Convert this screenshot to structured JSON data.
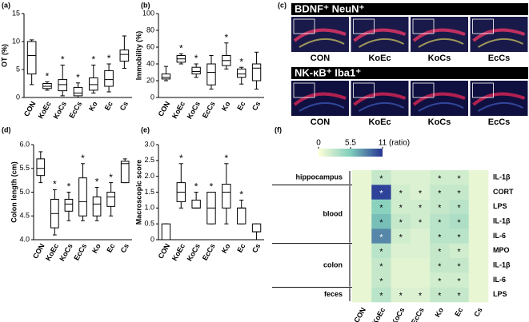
{
  "chart_data": [
    {
      "type": "box",
      "panel": "(a)",
      "ylabel": "OT (%)",
      "categories": [
        "CON",
        "KoEc",
        "KoCs",
        "EcCs",
        "Ko",
        "Ec",
        "Cs"
      ],
      "boxes": [
        [
          2.3,
          4.2,
          7.5,
          10,
          10.3
        ],
        [
          1.3,
          1.6,
          2,
          2.5,
          2.8
        ],
        [
          0.3,
          1.2,
          2.3,
          3.2,
          5.8
        ],
        [
          0,
          0.3,
          0.8,
          1.8,
          2.6
        ],
        [
          0.8,
          1.3,
          2.3,
          3.5,
          5.8
        ],
        [
          1,
          2,
          3.2,
          4.8,
          6
        ],
        [
          5.2,
          6.5,
          7.7,
          8.5,
          11
        ]
      ],
      "marks": [
        null,
        "*",
        "*",
        "*",
        "*",
        "*",
        null
      ],
      "ylim": [
        0,
        15
      ],
      "yticks": [
        0,
        5,
        10,
        15
      ]
    },
    {
      "type": "box",
      "panel": "(b)",
      "ylabel": "Immobility (%)",
      "categories": [
        "CON",
        "KoEc",
        "KoCs",
        "EcCs",
        "Ko",
        "Ec",
        "Cs"
      ],
      "boxes": [
        [
          20,
          22,
          24,
          28,
          37
        ],
        [
          40,
          42,
          46,
          50,
          52
        ],
        [
          24,
          28,
          31,
          36,
          40
        ],
        [
          10,
          15,
          30,
          40,
          50
        ],
        [
          34,
          38,
          44,
          50,
          65
        ],
        [
          16,
          24,
          28,
          34,
          36
        ],
        [
          10,
          20,
          35,
          40,
          54
        ]
      ],
      "marks": [
        null,
        "*",
        "*",
        null,
        "*",
        "*",
        null
      ],
      "ylim": [
        0,
        100
      ],
      "yticks": [
        0,
        20,
        40,
        60,
        80,
        100
      ]
    },
    {
      "type": "box",
      "panel": "(d)",
      "ylabel": "Colon length (cm)",
      "categories": [
        "CON",
        "KoEc",
        "KoCs",
        "EcCs",
        "Ko",
        "Ec",
        "Cs"
      ],
      "boxes": [
        [
          5.2,
          5.35,
          5.5,
          5.7,
          5.85
        ],
        [
          4.1,
          4.25,
          4.55,
          4.85,
          5.05
        ],
        [
          4.4,
          4.6,
          4.75,
          4.85,
          5.0
        ],
        [
          4.4,
          4.5,
          4.8,
          5.3,
          5.6
        ],
        [
          4.4,
          4.5,
          4.75,
          4.9,
          5.1
        ],
        [
          4.5,
          4.7,
          4.9,
          5.0,
          5.2
        ],
        [
          5.2,
          5.2,
          5.6,
          5.65,
          5.7
        ]
      ],
      "marks": [
        null,
        "*",
        "*",
        "*",
        "*",
        "*",
        null
      ],
      "ylim": [
        4,
        6
      ],
      "yticks": [
        {
          "value": 4,
          "label": "4.0"
        },
        4.5,
        {
          "value": 5,
          "label": "5.0"
        },
        5.5,
        {
          "value": 6,
          "label": "6.0"
        }
      ]
    },
    {
      "type": "box",
      "panel": "(e)",
      "ylabel": "Macroscopic score",
      "categories": [
        "CON",
        "KoEc",
        "KoCs",
        "EcCs",
        "Ko",
        "Ec",
        "Cs"
      ],
      "boxes": [
        [
          0,
          0,
          0,
          0.5,
          0.5
        ],
        [
          1,
          1.2,
          1.5,
          1.8,
          2.4
        ],
        [
          1,
          1,
          1,
          1.25,
          1.5
        ],
        [
          0.5,
          0.5,
          1,
          1.5,
          1.5
        ],
        [
          0.5,
          1,
          1.5,
          1.75,
          2.4
        ],
        [
          0.5,
          0.5,
          1,
          1,
          1.25
        ],
        [
          0,
          0.25,
          0.25,
          0.5,
          0.5
        ]
      ],
      "marks": [
        null,
        "*",
        "*",
        "*",
        "*",
        "*",
        null
      ],
      "ylim": [
        0,
        3
      ],
      "yticks": [
        0,
        0.5,
        {
          "value": 1,
          "label": "1.0"
        },
        1.5,
        {
          "value": 2,
          "label": "2.0"
        },
        2.5,
        {
          "value": 3,
          "label": "3.0"
        }
      ]
    },
    {
      "type": "heatmap",
      "panel": "(f)",
      "colorbar_label": "(ratio)",
      "clim": [
        0,
        11
      ],
      "cticks": [
        0,
        5.5,
        11
      ],
      "colors": [
        "#ffffd9",
        "#7fcdbb",
        "#253494"
      ],
      "categories": [
        "CON",
        "KoEc",
        "KoCs",
        "EcCs",
        "Ko",
        "Ec",
        "Cs"
      ],
      "groups": [
        {
          "name": "hippocampus",
          "rows": [
            {
              "label": "IL-1β",
              "values": [
                1,
                2.5,
                1.5,
                1.5,
                2,
                2,
                1
              ],
              "marks": [
                null,
                "*",
                null,
                null,
                "*",
                "*",
                null
              ]
            }
          ]
        },
        {
          "name": "blood",
          "rows": [
            {
              "label": "CORT",
              "values": [
                1,
                10.5,
                2,
                1.5,
                2.5,
                2.5,
                1
              ],
              "marks": [
                null,
                "*",
                "*",
                "*",
                "*",
                "*",
                null
              ]
            },
            {
              "label": "LPS",
              "values": [
                1,
                5,
                2,
                2,
                2.5,
                3,
                1
              ],
              "marks": [
                null,
                "*",
                "*",
                "*",
                "*",
                "*",
                null
              ]
            },
            {
              "label": "IL-1β",
              "values": [
                1,
                6,
                2.5,
                2,
                3,
                3.5,
                1
              ],
              "marks": [
                null,
                "*",
                "*",
                "*",
                "*",
                "*",
                null
              ]
            },
            {
              "label": "IL-6",
              "values": [
                1,
                8,
                2,
                1.5,
                3,
                3,
                1
              ],
              "marks": [
                null,
                "*",
                "*",
                null,
                "*",
                "*",
                null
              ]
            }
          ]
        },
        {
          "name": "colon",
          "rows": [
            {
              "label": "MPO",
              "values": [
                1,
                3,
                1.5,
                1.5,
                2.5,
                2,
                1
              ],
              "marks": [
                null,
                "*",
                null,
                null,
                "*",
                "*",
                null
              ]
            },
            {
              "label": "IL-1β",
              "values": [
                1,
                2.5,
                1.2,
                1.2,
                2.5,
                2.5,
                1
              ],
              "marks": [
                null,
                "*",
                null,
                null,
                "*",
                "*",
                null
              ]
            },
            {
              "label": "IL-6",
              "values": [
                1,
                2.5,
                1.2,
                1.2,
                2,
                2,
                1
              ],
              "marks": [
                null,
                "*",
                null,
                null,
                "*",
                "*",
                null
              ]
            }
          ]
        },
        {
          "name": "feces",
          "rows": [
            {
              "label": "LPS",
              "values": [
                1,
                3,
                1.5,
                1.5,
                2.5,
                2.5,
                1
              ],
              "marks": [
                null,
                "*",
                "*",
                "*",
                "*",
                "*",
                null
              ]
            }
          ]
        }
      ]
    }
  ],
  "images": {
    "panel": "(c)",
    "rows": [
      {
        "title": "BDNF⁺ NeuN⁺",
        "labels": [
          "CON",
          "KoEc",
          "KoCs",
          "EcCs"
        ]
      },
      {
        "title": "NK-κB⁺ Iba1⁺",
        "labels": [
          "CON",
          "KoEc",
          "KoCs",
          "EcCs"
        ]
      }
    ]
  }
}
